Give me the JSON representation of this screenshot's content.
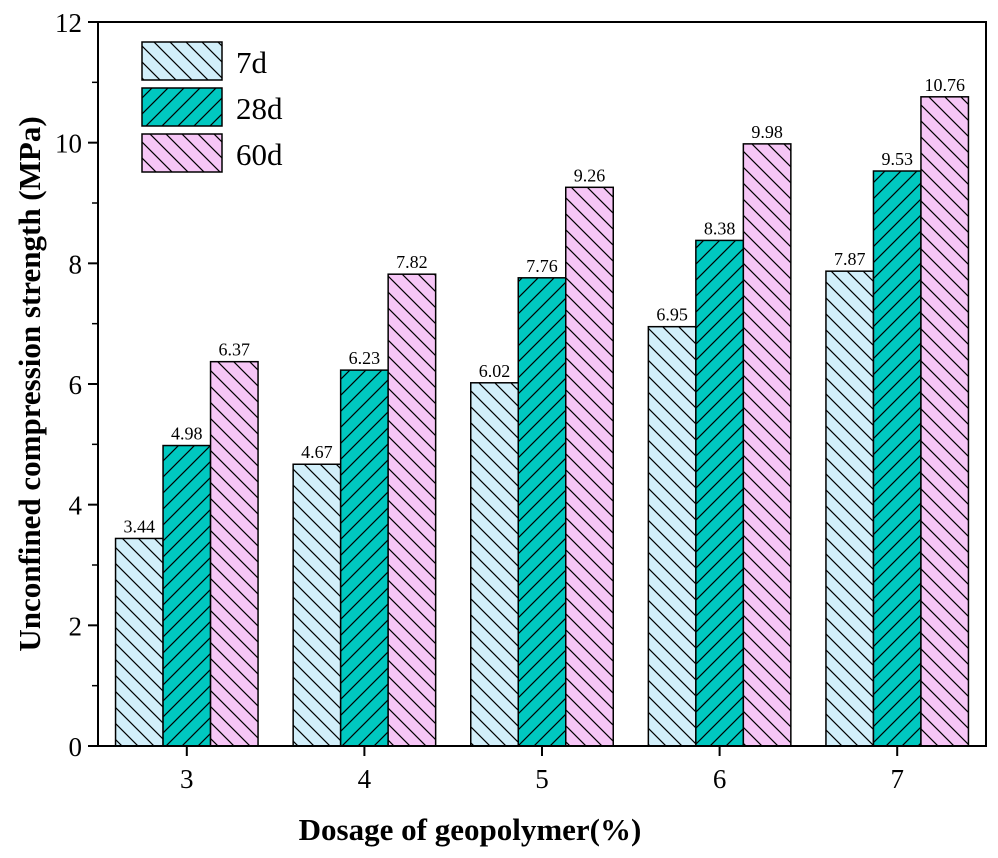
{
  "chart_data": {
    "type": "bar",
    "title": "",
    "xlabel": "Dosage of geopolymer(%)",
    "ylabel": "Unconfined compression strength (MPa)",
    "categories": [
      "3",
      "4",
      "5",
      "6",
      "7"
    ],
    "series": [
      {
        "name": "7d",
        "values": [
          3.44,
          4.67,
          6.02,
          6.95,
          7.87
        ],
        "color": "#d2effa",
        "hatch": "backslash"
      },
      {
        "name": "28d",
        "values": [
          4.98,
          6.23,
          7.76,
          8.38,
          9.53
        ],
        "color": "#00c8c0",
        "hatch": "slash"
      },
      {
        "name": "60d",
        "values": [
          6.37,
          7.82,
          9.26,
          9.98,
          10.76
        ],
        "color": "#f6c6f6",
        "hatch": "backslash"
      }
    ],
    "data_labels": [
      [
        "3.44",
        "4.98",
        "6.37"
      ],
      [
        "4.67",
        "6.23",
        "7.82"
      ],
      [
        "6.02",
        "7.76",
        "9.26"
      ],
      [
        "6.95",
        "8.38",
        "9.98"
      ],
      [
        "7.87",
        "9.53",
        "10.76"
      ]
    ],
    "ylim": [
      0,
      12
    ],
    "yticks": [
      "0",
      "2",
      "4",
      "6",
      "8",
      "10",
      "12"
    ],
    "grid": false,
    "legend": "top-left"
  }
}
